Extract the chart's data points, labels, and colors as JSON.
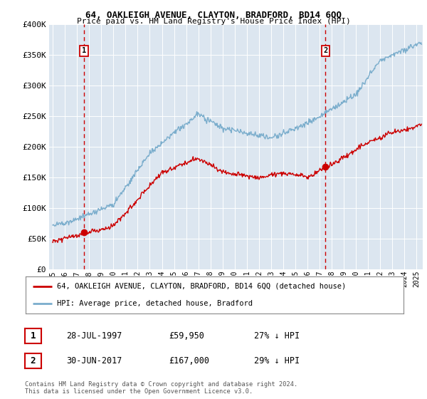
{
  "title1": "64, OAKLEIGH AVENUE, CLAYTON, BRADFORD, BD14 6QQ",
  "title2": "Price paid vs. HM Land Registry's House Price Index (HPI)",
  "ylabel_values": [
    "£0",
    "£50K",
    "£100K",
    "£150K",
    "£200K",
    "£250K",
    "£300K",
    "£350K",
    "£400K"
  ],
  "yticks": [
    0,
    50000,
    100000,
    150000,
    200000,
    250000,
    300000,
    350000,
    400000
  ],
  "ylim": [
    0,
    400000
  ],
  "xlim_start": 1994.7,
  "xlim_end": 2025.5,
  "sale1_x": 1997.57,
  "sale1_y": 59950,
  "sale1_label": "1",
  "sale2_x": 2017.49,
  "sale2_y": 167000,
  "sale2_label": "2",
  "sale1_date": "28-JUL-1997",
  "sale1_price": "£59,950",
  "sale1_hpi": "27% ↓ HPI",
  "sale2_date": "30-JUN-2017",
  "sale2_price": "£167,000",
  "sale2_hpi": "29% ↓ HPI",
  "legend_line1": "64, OAKLEIGH AVENUE, CLAYTON, BRADFORD, BD14 6QQ (detached house)",
  "legend_line2": "HPI: Average price, detached house, Bradford",
  "footnote": "Contains HM Land Registry data © Crown copyright and database right 2024.\nThis data is licensed under the Open Government Licence v3.0.",
  "line_color_red": "#cc0000",
  "line_color_blue": "#7aadcc",
  "bg_color": "#dce6f0",
  "dashed_line_color": "#cc0000",
  "xtick_years": [
    1995,
    1996,
    1997,
    1998,
    1999,
    2000,
    2001,
    2002,
    2003,
    2004,
    2005,
    2006,
    2007,
    2008,
    2009,
    2010,
    2011,
    2012,
    2013,
    2014,
    2015,
    2016,
    2017,
    2018,
    2019,
    2020,
    2021,
    2022,
    2023,
    2024,
    2025
  ]
}
